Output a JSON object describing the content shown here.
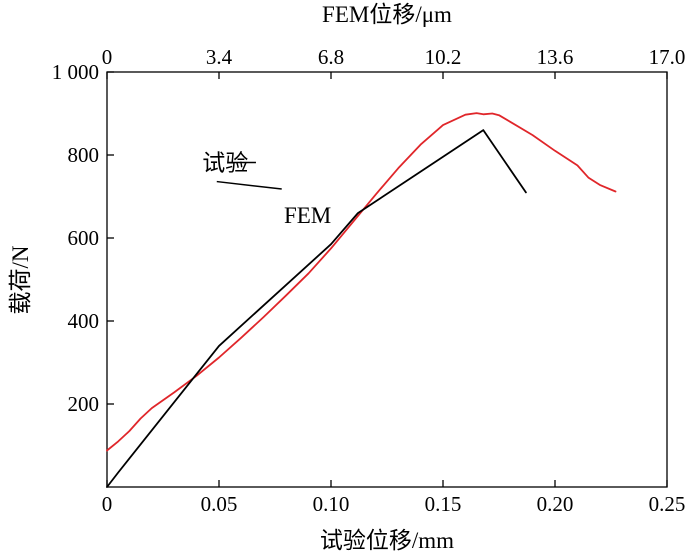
{
  "chart_data": {
    "type": "line",
    "xlabel": "试验位移/mm",
    "x2label": "FEM位移/μm",
    "ylabel": "载荷/N",
    "xlim": [
      0,
      0.25
    ],
    "x2lim": [
      0,
      17.0
    ],
    "ylim": [
      0,
      1000
    ],
    "xticks": [
      {
        "value": 0,
        "label": "0"
      },
      {
        "value": 0.05,
        "label": "0.05"
      },
      {
        "value": 0.1,
        "label": "0.10"
      },
      {
        "value": 0.15,
        "label": "0.15"
      },
      {
        "value": 0.2,
        "label": "0.20"
      },
      {
        "value": 0.25,
        "label": "0.25"
      }
    ],
    "x2ticks": [
      {
        "value": 0,
        "label": "0"
      },
      {
        "value": 3.4,
        "label": "3.4"
      },
      {
        "value": 6.8,
        "label": "6.8"
      },
      {
        "value": 10.2,
        "label": "10.2"
      },
      {
        "value": 13.6,
        "label": "13.6"
      },
      {
        "value": 17.0,
        "label": "17.0"
      }
    ],
    "yticks": [
      {
        "value": 200,
        "label": "200"
      },
      {
        "value": 400,
        "label": "400"
      },
      {
        "value": 600,
        "label": "600"
      },
      {
        "value": 800,
        "label": "800"
      },
      {
        "value": 1000,
        "label": "1 000"
      }
    ],
    "grid": false,
    "series": [
      {
        "name": "试验",
        "color": "#e0262a",
        "axis": "bottom",
        "x": [
          0.0,
          0.005,
          0.01,
          0.015,
          0.02,
          0.03,
          0.04,
          0.05,
          0.06,
          0.07,
          0.08,
          0.09,
          0.1,
          0.11,
          0.12,
          0.13,
          0.14,
          0.15,
          0.16,
          0.165,
          0.168,
          0.172,
          0.175,
          0.18,
          0.19,
          0.2,
          0.21,
          0.215,
          0.22,
          0.227
        ],
        "y": [
          88,
          110,
          135,
          165,
          190,
          228,
          268,
          312,
          360,
          410,
          462,
          515,
          575,
          640,
          705,
          768,
          825,
          872,
          897,
          901,
          898,
          900,
          896,
          880,
          848,
          810,
          775,
          745,
          728,
          712
        ]
      },
      {
        "name": "FEM",
        "color": "#000000",
        "axis": "bottom",
        "x": [
          0.0,
          0.005,
          0.05,
          0.1,
          0.112,
          0.14,
          0.168,
          0.187
        ],
        "y": [
          0,
          35,
          340,
          585,
          660,
          760,
          860,
          710
        ]
      }
    ],
    "annotations": [
      {
        "text": "试验",
        "series": "试验",
        "text_x": 0.0425,
        "text_y": 782,
        "line_x1": 0.054,
        "line_y1": 782,
        "line_x2": 0.0665,
        "line_y2": 782
      },
      {
        "text": "FEM",
        "series": "FEM",
        "text_x": 0.079,
        "text_y": 655,
        "line_x1": 0.049,
        "line_y1": 736,
        "line_x2": 0.078,
        "line_y2": 718
      }
    ]
  }
}
